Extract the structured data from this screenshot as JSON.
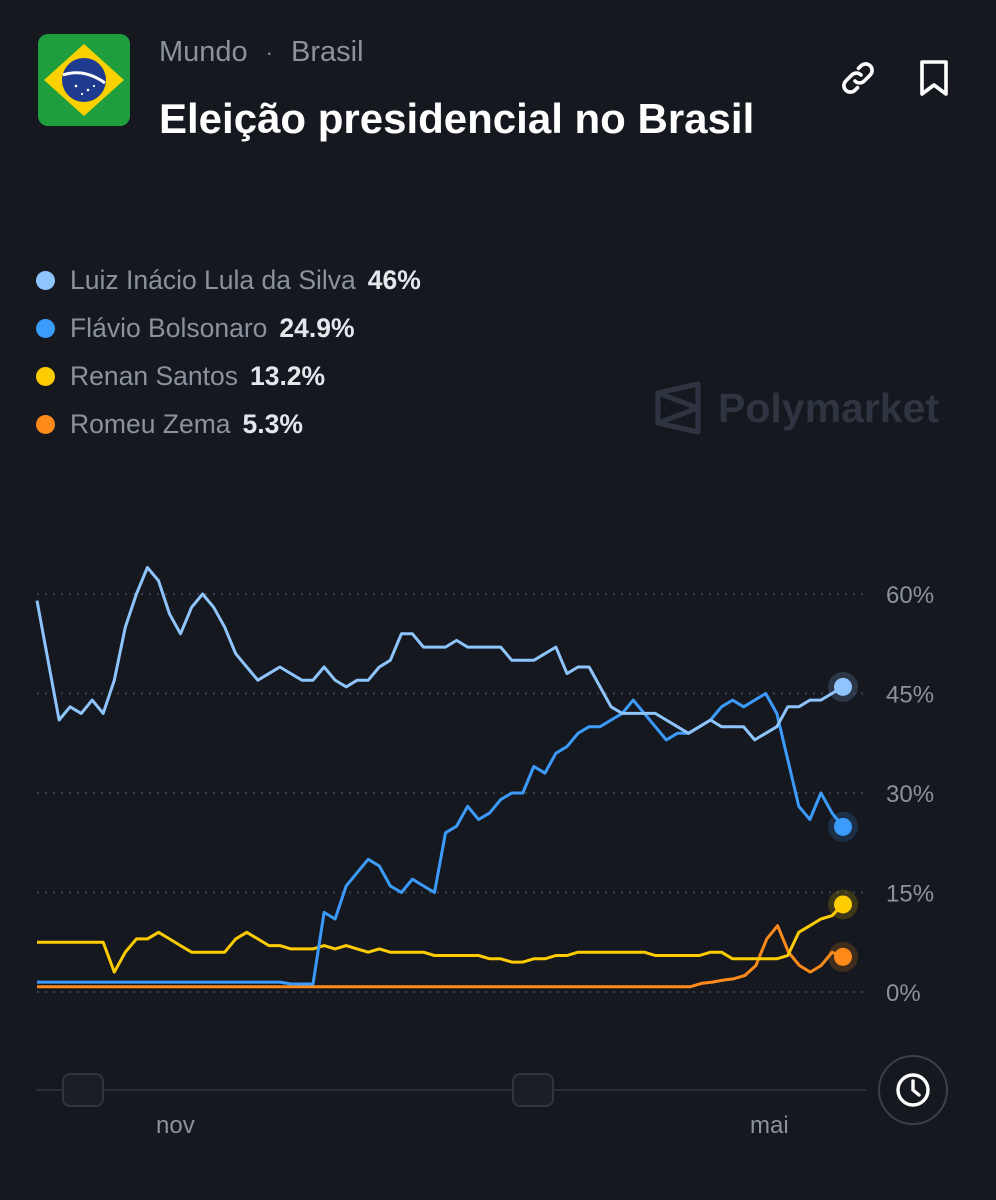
{
  "header": {
    "breadcrumb": [
      "Mundo",
      "Brasil"
    ],
    "title": "Eleição presidencial no Brasil"
  },
  "watermark": "Polymarket",
  "colors": {
    "background": "#15181e",
    "lula": "#8ec4ff",
    "flavio": "#3b9bff",
    "renan": "#ffcc00",
    "zema": "#ff8a1a"
  },
  "icons": [
    "brazil-flag-icon",
    "link-icon",
    "bookmark-icon",
    "clock-icon"
  ],
  "chart_data": {
    "type": "line",
    "yticks": [
      "60%",
      "45%",
      "30%",
      "15%",
      "0%"
    ],
    "ylim": [
      0,
      60
    ],
    "grid": true,
    "legend_position": "top-left",
    "xticks": [
      "nov",
      "mai"
    ],
    "series": [
      {
        "name": "Luiz Inácio Lula da Silva",
        "current_label": "46%",
        "current": 46,
        "color": "#8ec4ff",
        "values": [
          59,
          50,
          41,
          43,
          42,
          44,
          42,
          47,
          55,
          60,
          64,
          62,
          57,
          54,
          58,
          60,
          58,
          55,
          51,
          49,
          47,
          48,
          49,
          48,
          47,
          47,
          49,
          47,
          46,
          47,
          47,
          49,
          50,
          54,
          54,
          52,
          52,
          52,
          53,
          52,
          52,
          52,
          52,
          50,
          50,
          50,
          51,
          52,
          48,
          49,
          49,
          46,
          43,
          42,
          42,
          42,
          42,
          41,
          40,
          39,
          40,
          41,
          40,
          40,
          40,
          38,
          39,
          40,
          43,
          43,
          44,
          44,
          45,
          46
        ]
      },
      {
        "name": "Flávio Bolsonaro",
        "current_label": "24.9%",
        "current": 24.9,
        "color": "#3b9bff",
        "values": [
          1.5,
          1.5,
          1.5,
          1.5,
          1.5,
          1.5,
          1.5,
          1.5,
          1.5,
          1.5,
          1.5,
          1.5,
          1.5,
          1.5,
          1.5,
          1.5,
          1.5,
          1.5,
          1.5,
          1.5,
          1.5,
          1.5,
          1.5,
          1.2,
          1.2,
          1.2,
          12,
          11,
          16,
          18,
          20,
          19,
          16,
          15,
          17,
          16,
          15,
          24,
          25,
          28,
          26,
          27,
          29,
          30,
          30,
          34,
          33,
          36,
          37,
          39,
          40,
          40,
          41,
          42,
          44,
          42,
          40,
          38,
          39,
          39,
          40,
          41,
          43,
          44,
          43,
          44,
          45,
          42,
          35,
          28,
          26,
          30,
          27,
          24.9
        ]
      },
      {
        "name": "Renan Santos",
        "current_label": "13.2%",
        "current": 13.2,
        "color": "#ffcc00",
        "values": [
          7.5,
          7.5,
          7.5,
          7.5,
          7.5,
          7.5,
          7.5,
          3,
          6,
          8,
          8,
          9,
          8,
          7,
          6,
          6,
          6,
          6,
          8,
          9,
          8,
          7,
          7,
          6.5,
          6.5,
          6.5,
          7,
          6.5,
          7,
          6.5,
          6,
          6.5,
          6,
          6,
          6,
          6,
          5.5,
          5.5,
          5.5,
          5.5,
          5.5,
          5,
          5,
          4.5,
          4.5,
          5,
          5,
          5.5,
          5.5,
          6,
          6,
          6,
          6,
          6,
          6,
          6,
          5.5,
          5.5,
          5.5,
          5.5,
          5.5,
          6,
          6,
          5,
          5,
          5,
          5,
          5,
          5.5,
          9,
          10,
          11,
          11.5,
          13.2
        ]
      },
      {
        "name": "Romeu Zema",
        "current_label": "5.3%",
        "current": 5.3,
        "color": "#ff8a1a",
        "values": [
          0.8,
          0.8,
          0.8,
          0.8,
          0.8,
          0.8,
          0.8,
          0.8,
          0.8,
          0.8,
          0.8,
          0.8,
          0.8,
          0.8,
          0.8,
          0.8,
          0.8,
          0.8,
          0.8,
          0.8,
          0.8,
          0.8,
          0.8,
          0.8,
          0.8,
          0.8,
          0.8,
          0.8,
          0.8,
          0.8,
          0.8,
          0.8,
          0.8,
          0.8,
          0.8,
          0.8,
          0.8,
          0.8,
          0.8,
          0.8,
          0.8,
          0.8,
          0.8,
          0.8,
          0.8,
          0.8,
          0.8,
          0.8,
          0.8,
          0.8,
          0.8,
          0.8,
          0.8,
          0.8,
          0.8,
          0.8,
          0.8,
          0.8,
          0.8,
          0.8,
          0.8,
          1.3,
          1.5,
          1.8,
          2,
          2.5,
          4,
          8,
          10,
          6,
          4,
          3,
          4,
          6,
          5.3
        ]
      }
    ]
  }
}
